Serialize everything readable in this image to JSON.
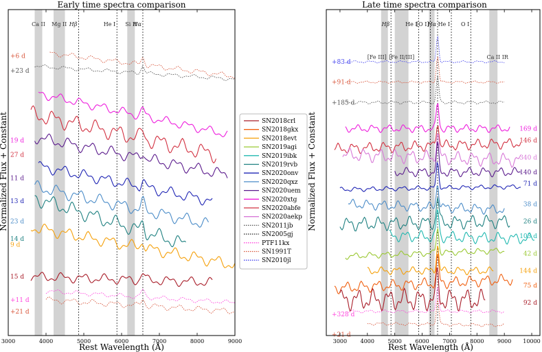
{
  "chart_data": [
    {
      "type": "line",
      "panel": "left",
      "title": "Early time spectra comparison",
      "xlabel": "Rest Wavelength (Å)",
      "ylabel": "Normalized Flux + Constant",
      "xlim": [
        3000,
        9000
      ],
      "xticks": [
        3000,
        4000,
        5000,
        6000,
        7000,
        8000,
        9000
      ],
      "ylim": [
        0,
        100
      ],
      "grey_bands": [
        [
          3700,
          3900
        ],
        [
          4200,
          4500
        ],
        [
          6150,
          6350
        ]
      ],
      "band_labels": [
        {
          "text": "Ca II",
          "x": 3800
        },
        {
          "text": "Mg II",
          "x": 4350
        },
        {
          "text": "Si II",
          "x": 6250
        }
      ],
      "line_markers": [
        {
          "text": "Hβ",
          "x": 4861
        },
        {
          "text": "He I",
          "x": 5876
        },
        {
          "text": "Hα",
          "x": 6563
        }
      ],
      "series": [
        {
          "name": "SN1991T",
          "epoch": "+6 d",
          "color": "#d8553a",
          "style": "dotted",
          "x0": 4100,
          "x1": 9000,
          "y0": 94,
          "y1": 86,
          "amp": 0.7,
          "label_y": 93
        },
        {
          "name": "SN2011jb",
          "epoch": "+23 d",
          "color": "#555555",
          "style": "dotted",
          "x0": 3700,
          "x1": 9000,
          "y0": 89.5,
          "y1": 85,
          "amp": 0.5,
          "label_y": 88
        },
        {
          "name": "SN2020xtg",
          "epoch": "19 d",
          "color": "#ee1ddd",
          "style": "solid",
          "x0": 3800,
          "x1": 8800,
          "y0": 80,
          "y1": 66,
          "amp": 1.2,
          "label_y": 64
        },
        {
          "name": "SN2020abfe",
          "epoch": "27 d",
          "color": "#d23040",
          "style": "solid",
          "x0": 3600,
          "x1": 8500,
          "y0": 73,
          "y1": 59,
          "amp": 2.2,
          "label_y": 59
        },
        {
          "name": "SN2020uem",
          "epoch": "11 d",
          "color": "#5a1a8c",
          "style": "solid",
          "x0": 3700,
          "x1": 8800,
          "y0": 65,
          "y1": 52,
          "amp": 1.6,
          "label_y": 51
        },
        {
          "name": "SN2020onv",
          "epoch": "13 d",
          "color": "#1e24b4",
          "style": "solid",
          "x0": 3800,
          "x1": 8400,
          "y0": 55,
          "y1": 43,
          "amp": 1.5,
          "label_y": 43
        },
        {
          "name": "SN2020qxz",
          "epoch": "23 d",
          "color": "#4b8cc8",
          "style": "solid",
          "x0": 3700,
          "x1": 8300,
          "y0": 48,
          "y1": 35,
          "amp": 1.7,
          "label_y": 36
        },
        {
          "name": "SN2019rvb",
          "epoch": "14 d",
          "color": "#1e8080",
          "style": "solid",
          "x0": 3700,
          "x1": 7700,
          "y0": 44,
          "y1": 28,
          "amp": 2.0,
          "label_y": 30
        },
        {
          "name": "SN2018evt",
          "epoch": "9 d",
          "color": "#f5a00a",
          "style": "solid",
          "x0": 3600,
          "x1": 9000,
          "y0": 34,
          "y1": 21,
          "amp": 1.6,
          "label_y": 28
        },
        {
          "name": "SN2018crl",
          "epoch": "15 d",
          "color": "#a81c28",
          "style": "solid",
          "x0": 3600,
          "x1": 8400,
          "y0": 17,
          "y1": 15,
          "amp": 1.3,
          "label_y": 17
        },
        {
          "name": "PTF11kx",
          "epoch": "+11 d",
          "color": "#ff44dd",
          "style": "dotted",
          "x0": 4000,
          "x1": 9000,
          "y0": 12,
          "y1": 8,
          "amp": 0.6,
          "label_y": 9
        },
        {
          "name": "SN1991T",
          "epoch": "+21 d",
          "color": "#d8553a",
          "style": "dotted",
          "x0": 4000,
          "x1": 9000,
          "y0": 9,
          "y1": 5,
          "amp": 0.8,
          "label_y": 5
        }
      ]
    },
    {
      "type": "line",
      "panel": "right",
      "title": "Late time spectra comparison",
      "xlabel": "Rest Wavelength (Å)",
      "ylabel": "Normalized Flux + Constant",
      "xlim": [
        2500,
        10300
      ],
      "xticks": [
        3000,
        4000,
        5000,
        6000,
        7000,
        8000,
        9000,
        10000
      ],
      "ylim": [
        0,
        100
      ],
      "grey_bands": [
        [
          4500,
          4750
        ],
        [
          5000,
          5500
        ],
        [
          6250,
          6450
        ],
        [
          8450,
          8750
        ]
      ],
      "band_labels": [
        {
          "text": "[Fe III]",
          "x": 4350
        },
        {
          "text": "[Fe II/III]",
          "x": 5250
        },
        {
          "text": "Ca II IR",
          "x": 8750
        }
      ],
      "line_markers": [
        {
          "text": "Hβ",
          "x": 4861
        },
        {
          "text": "He I",
          "x": 5876
        },
        {
          "text": "[O I]",
          "x": 6300
        },
        {
          "text": "Hα",
          "x": 6563
        },
        {
          "text": "He I",
          "x": 7065
        },
        {
          "text": "O I",
          "x": 7774
        }
      ],
      "series": [
        {
          "name": "SN2010jl",
          "epoch": "+83 d",
          "color": "#4444ee",
          "style": "dotted",
          "x0": 3200,
          "x1": 9000,
          "y0": 91,
          "y1": 91,
          "amp": 0.3,
          "label_y": 91,
          "label_side": "left"
        },
        {
          "name": "SN1991T",
          "epoch": "+91 d",
          "color": "#d8553a",
          "style": "dotted",
          "x0": 3200,
          "x1": 9000,
          "y0": 84,
          "y1": 84,
          "amp": 0.3,
          "label_y": 84,
          "label_side": "left"
        },
        {
          "name": "SN2011jb",
          "epoch": "+185 d",
          "color": "#555555",
          "style": "dotted",
          "x0": 3200,
          "x1": 9000,
          "y0": 77,
          "y1": 77,
          "amp": 0.4,
          "label_y": 77,
          "label_side": "left"
        },
        {
          "name": "SN2020xtg",
          "epoch": "169 d",
          "color": "#ee1ddd",
          "style": "solid",
          "x0": 3200,
          "x1": 9200,
          "y0": 68,
          "y1": 68,
          "amp": 1.0,
          "label_y": 68,
          "label_side": "right"
        },
        {
          "name": "SN2020abfe",
          "epoch": "146 d",
          "color": "#d23040",
          "style": "solid",
          "x0": 2800,
          "x1": 9600,
          "y0": 61,
          "y1": 63,
          "amp": 1.4,
          "label_y": 64,
          "label_side": "right"
        },
        {
          "name": "SN2020aekp",
          "epoch": "340 d",
          "color": "#d87ad8",
          "style": "solid",
          "x0": 3100,
          "x1": 9600,
          "y0": 59,
          "y1": 57,
          "amp": 1.8,
          "label_y": 58,
          "label_side": "right"
        },
        {
          "name": "SN2020uem",
          "epoch": "140 d",
          "color": "#5a1a8c",
          "style": "solid",
          "x0": 5000,
          "x1": 9600,
          "y0": 53,
          "y1": 53,
          "amp": 1.2,
          "label_y": 53,
          "label_side": "right"
        },
        {
          "name": "SN2020onv",
          "epoch": "71 d",
          "color": "#1e24b4",
          "style": "solid",
          "x0": 3000,
          "x1": 9600,
          "y0": 47,
          "y1": 48,
          "amp": 0.6,
          "label_y": 49,
          "label_side": "right"
        },
        {
          "name": "SN2020qxz",
          "epoch": "38 d",
          "color": "#4b8cc8",
          "style": "solid",
          "x0": 3300,
          "x1": 9000,
          "y0": 42,
          "y1": 40,
          "amp": 1.3,
          "label_y": 42,
          "label_side": "right"
        },
        {
          "name": "SN2019rvb",
          "epoch": "26 d",
          "color": "#1e8080",
          "style": "solid",
          "x0": 3000,
          "x1": 9200,
          "y0": 35,
          "y1": 36,
          "amp": 1.8,
          "label_y": 36,
          "label_side": "right"
        },
        {
          "name": "SN2019ibk",
          "epoch": "103 d",
          "color": "#20b8b0",
          "style": "solid",
          "x0": 4800,
          "x1": 10100,
          "y0": 31,
          "y1": 30,
          "amp": 1.5,
          "label_y": 31,
          "label_side": "right"
        },
        {
          "name": "SN2019agi",
          "epoch": "42 d",
          "color": "#9ac832",
          "style": "solid",
          "x0": 3200,
          "x1": 9000,
          "y0": 24,
          "y1": 26,
          "amp": 0.8,
          "label_y": 25,
          "label_side": "right"
        },
        {
          "name": "SN2018evt",
          "epoch": "144 d",
          "color": "#f5a00a",
          "style": "solid",
          "x0": 4000,
          "x1": 8600,
          "y0": 19,
          "y1": 19,
          "amp": 1.0,
          "label_y": 19,
          "label_side": "right"
        },
        {
          "name": "SN2018gkx",
          "epoch": "75 d",
          "color": "#f06010",
          "style": "solid",
          "x0": 2800,
          "x1": 9300,
          "y0": 13,
          "y1": 16,
          "amp": 1.5,
          "label_y": 14,
          "label_side": "right"
        },
        {
          "name": "SN2018crl",
          "epoch": "92 d",
          "color": "#a81c28",
          "style": "solid",
          "x0": 3000,
          "x1": 8300,
          "y0": 9,
          "y1": 9,
          "amp": 2.8,
          "label_y": 8,
          "label_side": "right"
        },
        {
          "name": "PTF11kx",
          "epoch": "+328 d",
          "color": "#ff44dd",
          "style": "dotted",
          "x0": 3200,
          "x1": 9000,
          "y0": 5,
          "y1": 5,
          "amp": 0.4,
          "label_y": 4,
          "label_side": "left"
        },
        {
          "name": "SN1991T",
          "epoch": "+21 d",
          "color": "#d8553a",
          "style": "dotted",
          "x0": 4000,
          "x1": 9000,
          "y0": 0.8,
          "y1": 0.2,
          "amp": 0.4,
          "label_y": -3,
          "label_side": "left"
        }
      ]
    }
  ],
  "legend": {
    "entries": [
      {
        "name": "SN2018crl",
        "color": "#a81c28",
        "style": "solid"
      },
      {
        "name": "SN2018gkx",
        "color": "#f06010",
        "style": "solid"
      },
      {
        "name": "SN2018evt",
        "color": "#f5a00a",
        "style": "solid"
      },
      {
        "name": "SN2019agi",
        "color": "#9ac832",
        "style": "solid"
      },
      {
        "name": "SN2019ibk",
        "color": "#20b8b0",
        "style": "solid"
      },
      {
        "name": "SN2019rvb",
        "color": "#1e8080",
        "style": "solid"
      },
      {
        "name": "SN2020onv",
        "color": "#1e24b4",
        "style": "solid"
      },
      {
        "name": "SN2020qxz",
        "color": "#4b8cc8",
        "style": "solid"
      },
      {
        "name": "SN2020uem",
        "color": "#5a1a8c",
        "style": "solid"
      },
      {
        "name": "SN2020xtg",
        "color": "#ee1ddd",
        "style": "solid"
      },
      {
        "name": "SN2020abfe",
        "color": "#d23040",
        "style": "solid"
      },
      {
        "name": "SN2020aekp",
        "color": "#d87ad8",
        "style": "solid"
      },
      {
        "name": "SN2011jb",
        "color": "#555555",
        "style": "dotted"
      },
      {
        "name": "SN2005gj",
        "color": "#222222",
        "style": "dotted"
      },
      {
        "name": "PTF11kx",
        "color": "#ff44dd",
        "style": "dotted"
      },
      {
        "name": "SN1991T",
        "color": "#d8553a",
        "style": "dotted"
      },
      {
        "name": "SN2010jl",
        "color": "#4444ee",
        "style": "dotted"
      }
    ]
  }
}
